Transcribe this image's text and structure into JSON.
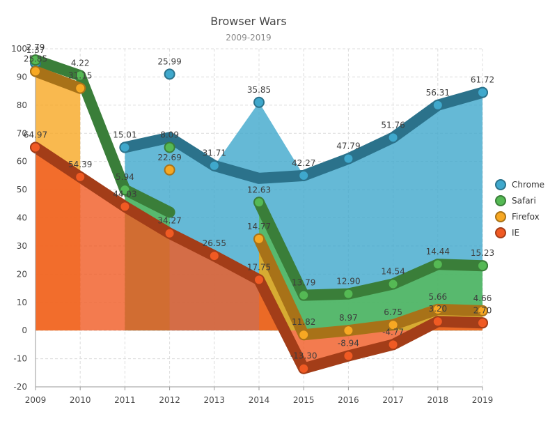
{
  "chart_data": {
    "type": "line",
    "title": "Browser Wars",
    "subtitle": "2009-2019",
    "x": [
      2009,
      2010,
      2011,
      2012,
      2013,
      2014,
      2015,
      2016,
      2017,
      2018,
      2019
    ],
    "xlabel": "",
    "ylabel": "",
    "ylim": [
      -20,
      100
    ],
    "yticks": [
      -20,
      -10,
      0,
      10,
      20,
      30,
      40,
      50,
      60,
      70,
      80,
      90,
      100
    ],
    "grid": true,
    "legend_position": "right",
    "series": [
      {
        "name": "Chrome",
        "color": "#3fa8cc",
        "values": [
          1.37,
          null,
          15.01,
          25.99,
          31.71,
          35.85,
          42.27,
          47.79,
          51.76,
          56.31,
          61.72
        ],
        "labels": [
          "1.37",
          "",
          "15.01",
          "25.99",
          "31.71",
          "35.85",
          "42.27",
          "47.79",
          "51.76",
          "56.31",
          "61.72"
        ],
        "point_y": [
          95,
          null,
          65,
          91,
          58.5,
          81,
          55,
          61,
          68.5,
          80,
          84.5
        ],
        "fill_top": [
          null,
          null,
          65,
          67.5,
          58.5,
          81,
          55,
          61,
          68.5,
          80,
          84.5
        ],
        "stroke_y": [
          null,
          null,
          65,
          68.5,
          58.5,
          54,
          55,
          61,
          68.5,
          80,
          84.5
        ]
      },
      {
        "name": "Safari",
        "color": "#55b954",
        "values": [
          2.79,
          4.22,
          5.94,
          8.09,
          null,
          12.63,
          13.79,
          12.9,
          14.54,
          14.44,
          15.23
        ],
        "labels": [
          "2.79",
          "4.22",
          "5.94",
          "8.09",
          "",
          "12.63",
          "13.79",
          "12.90",
          "14.54",
          "14.44",
          "15.23"
        ],
        "point_y": [
          96,
          90.5,
          50,
          65,
          null,
          45.5,
          12.5,
          13,
          16.5,
          23.5,
          23
        ],
        "fill_top": [
          null,
          null,
          50,
          42,
          null,
          45.5,
          12.5,
          13,
          16.5,
          23.5,
          23
        ],
        "stroke_y": [
          96,
          90.5,
          50,
          42,
          null,
          45.5,
          12.5,
          13,
          16.5,
          23.5,
          23
        ]
      },
      {
        "name": "Firefox",
        "color": "#f7a823",
        "values": [
          25.85,
          31.15,
          null,
          22.69,
          null,
          14.77,
          11.82,
          8.97,
          6.75,
          5.66,
          4.66
        ],
        "labels": [
          "25.85",
          "31.15",
          "",
          "22.69",
          "",
          "14.77",
          "11.82",
          "8.97",
          "6.75",
          "5.66",
          "4.66"
        ],
        "point_y": [
          92,
          86,
          null,
          57,
          null,
          32.5,
          -1.5,
          0,
          2,
          7.5,
          7
        ],
        "fill_top": [
          92,
          86,
          null,
          null,
          null,
          32.5,
          -1.5,
          0,
          2,
          7.5,
          7
        ],
        "stroke_y": [
          92,
          86,
          null,
          null,
          null,
          32.5,
          -1.5,
          0,
          2,
          7.5,
          7
        ]
      },
      {
        "name": "IE",
        "color": "#f05a23",
        "values": [
          64.97,
          54.39,
          44.03,
          34.27,
          26.55,
          17.75,
          -13.3,
          -8.94,
          -4.77,
          3.2,
          2.7
        ],
        "labels": [
          "64.97",
          "54.39",
          "44.03",
          "34.27",
          "26.55",
          "17.75",
          "-13.30",
          "-8.94",
          "-4.77",
          "3.20",
          "2.70"
        ],
        "point_y": [
          65,
          54.5,
          44,
          34.5,
          26.5,
          18,
          -13.5,
          -9,
          -5,
          3.2,
          2.7
        ],
        "fill_top": [
          65,
          54.5,
          44,
          34.5,
          26.5,
          18,
          -13.5,
          -9,
          -5,
          3.2,
          2.7
        ],
        "stroke_y": [
          65,
          54.5,
          44,
          34.5,
          26.5,
          18,
          -13.5,
          -9,
          -5,
          3.2,
          2.7
        ]
      }
    ]
  }
}
